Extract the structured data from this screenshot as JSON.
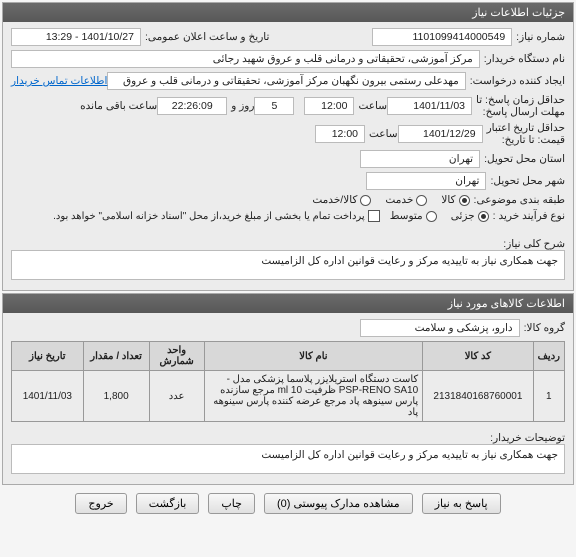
{
  "panel1": {
    "title": "جزئیات اطلاعات نیاز",
    "need_no_lbl": "شماره نیاز:",
    "need_no": "1101099414000549",
    "announce_lbl": "تاریخ و ساعت اعلان عمومی:",
    "announce": "1401/10/27 - 13:29",
    "buyer_lbl": "نام دستگاه خریدار:",
    "buyer": "مرکز آموزشی، تحقیقاتی و درمانی قلب و عروق شهید رجائی",
    "creator_lbl": "ایجاد کننده درخواست:",
    "creator": "مهدعلی رستمی بیرون نگهبان مرکز آموزشی، تحقیقاتی و درمانی قلب و عروق",
    "contact_link": "اطلاعات تماس خریدار",
    "reply_deadline_lbl": "حداقل زمان پاسخ: تا",
    "reply_deadline_sub": "مهلت ارسال پاسخ:",
    "reply_date": "1401/11/03",
    "time_lbl": "ساعت",
    "reply_time": "12:00",
    "days_val": "5",
    "days_lbl": "روز و",
    "countdown": "22:26:09",
    "remain_lbl": "ساعت باقی مانده",
    "valid_lbl": "حداقل تاریخ اعتبار",
    "valid_sub": "قیمت: تا تاریخ:",
    "valid_date": "1401/12/29",
    "valid_time": "12:00",
    "need_loc_lbl": "استان محل تحویل:",
    "need_loc": "تهران",
    "city_lbl": "شهر محل تحویل:",
    "city": "تهران",
    "subject_cat_lbl": "طبقه بندی موضوعی:",
    "subject_radios": [
      "کالا",
      "خدمت",
      "کالا/خدمت"
    ],
    "subject_sel": 0,
    "buy_type_lbl": "نوع فرآیند خرید :",
    "buy_radios": [
      "جزئی",
      "متوسط"
    ],
    "buy_sel": 0,
    "partial_pay_chk": "پرداخت تمام یا بخشی از مبلغ خرید،از محل \"اسناد خزانه اسلامی\" خواهد بود.",
    "desc_lbl": "شرح کلی نیاز:",
    "desc": "جهت همکاری نیاز به تاییدیه مرکز و رعایت قوانین اداره کل الزامیست"
  },
  "panel2": {
    "title": "اطلاعات کالاهای مورد نیاز",
    "group_lbl": "گروه کالا:",
    "group": "دارو، پزشکی و سلامت",
    "cols": [
      "ردیف",
      "کد کالا",
      "نام کالا",
      "واحد شمارش",
      "تعداد / مقدار",
      "تاریخ نیاز"
    ],
    "rows": [
      [
        "1",
        "2131840168760001",
        "کاست دستگاه استریلایزر پلاسما پزشکی مدل -PSP-RENO SA10 ظرفیت ml 10 مرجع سازنده پارس سینوهه پاد مرجع عرضه کننده پارس سینوهه پاد",
        "عدد",
        "1,800",
        "1401/11/03"
      ]
    ],
    "buyer_note_lbl": "توضیحات خریدار:",
    "buyer_note": "جهت همکاری نیاز به تاییدیه مرکز و رعایت قوانین اداره کل الزامیست"
  },
  "buttons": {
    "reply": "پاسخ به نیاز",
    "view_docs": "مشاهده مدارک پیوستی (0)",
    "print": "چاپ",
    "back": "بازگشت",
    "exit": "خروج"
  }
}
